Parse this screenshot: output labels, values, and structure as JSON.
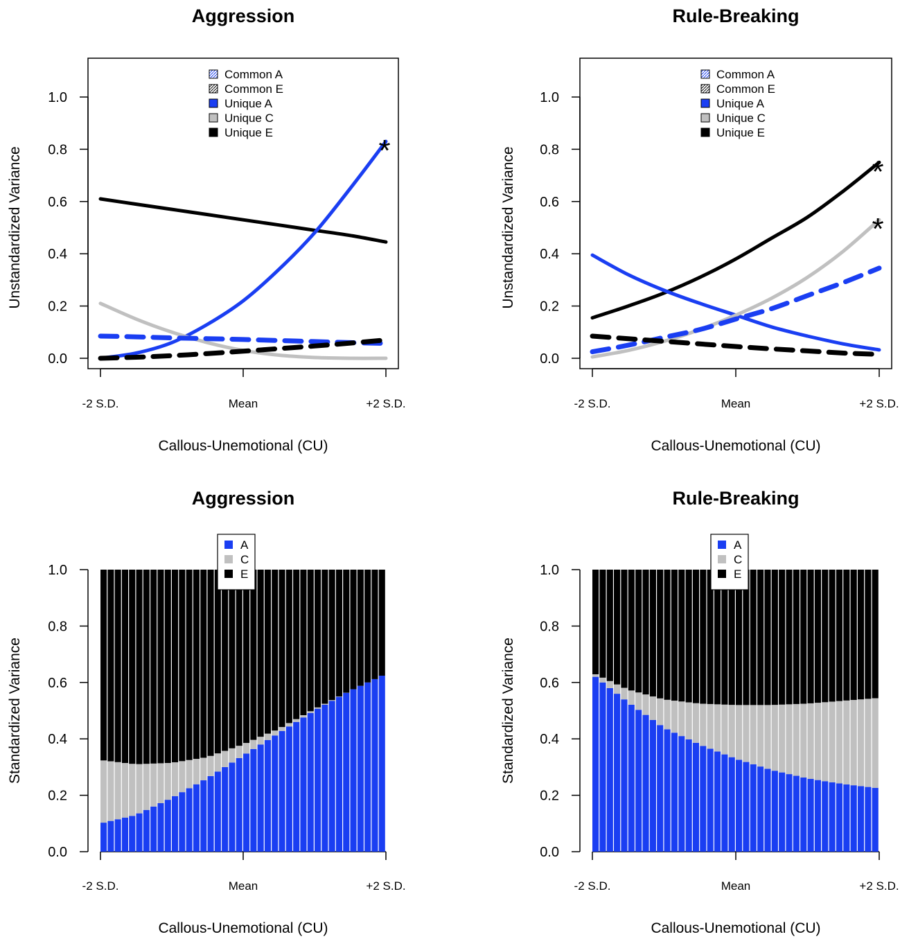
{
  "colors": {
    "blue": "#1a3ef2",
    "gray": "#c0c0c0",
    "black": "#000000",
    "white": "#ffffff"
  },
  "chart_data": [
    {
      "type": "line",
      "title": "Aggression",
      "xlabel": "Callous-Unemotional (CU)",
      "ylabel": "Unstandardized Variance",
      "x_tick_labels": [
        "-2 S.D.",
        "Mean",
        "+2 S.D."
      ],
      "x": [
        -2,
        -1.5,
        -1,
        -0.5,
        0,
        0.5,
        1,
        1.5,
        2
      ],
      "xlim": [
        -2,
        2
      ],
      "ylim": [
        0,
        1.1
      ],
      "y_ticks": [
        "0.0",
        "0.2",
        "0.4",
        "0.6",
        "0.8",
        "1.0"
      ],
      "grid": false,
      "legend_position": "top",
      "legend": [
        {
          "label": "Common A",
          "swatch": "hatch",
          "color": "#1a3ef2"
        },
        {
          "label": "Common E",
          "swatch": "hatch",
          "color": "#000000"
        },
        {
          "label": "Unique A",
          "swatch": "solid",
          "color": "#1a3ef2"
        },
        {
          "label": "Unique C",
          "swatch": "solid",
          "color": "#c0c0c0"
        },
        {
          "label": "Unique E",
          "swatch": "solid",
          "color": "#000000"
        }
      ],
      "series": [
        {
          "name": "Unique E",
          "color": "#000000",
          "style": "solid",
          "values": [
            0.61,
            0.59,
            0.57,
            0.55,
            0.53,
            0.51,
            0.49,
            0.47,
            0.445
          ]
        },
        {
          "name": "Unique A",
          "color": "#1a3ef2",
          "style": "solid",
          "values": [
            0.0,
            0.02,
            0.06,
            0.13,
            0.22,
            0.34,
            0.48,
            0.65,
            0.83
          ]
        },
        {
          "name": "Unique C",
          "color": "#c0c0c0",
          "style": "solid",
          "values": [
            0.21,
            0.15,
            0.1,
            0.06,
            0.03,
            0.012,
            0.003,
            0.0,
            0.0
          ]
        },
        {
          "name": "Common A",
          "color": "#1a3ef2",
          "style": "dashed",
          "values": [
            0.085,
            0.082,
            0.078,
            0.075,
            0.072,
            0.068,
            0.064,
            0.06,
            0.057
          ]
        },
        {
          "name": "Common E",
          "color": "#000000",
          "style": "dashed",
          "values": [
            0.0,
            0.004,
            0.01,
            0.018,
            0.027,
            0.037,
            0.047,
            0.058,
            0.07
          ]
        }
      ],
      "annotations": [
        {
          "text": "*",
          "x": 2,
          "y": 0.83
        }
      ]
    },
    {
      "type": "line",
      "title": "Rule-Breaking",
      "xlabel": "Callous-Unemotional (CU)",
      "ylabel": "Unstandardized Variance",
      "x_tick_labels": [
        "-2 S.D.",
        "Mean",
        "+2 S.D."
      ],
      "x": [
        -2,
        -1.5,
        -1,
        -0.5,
        0,
        0.5,
        1,
        1.5,
        2
      ],
      "xlim": [
        -2,
        2
      ],
      "ylim": [
        0,
        1.1
      ],
      "y_ticks": [
        "0.0",
        "0.2",
        "0.4",
        "0.6",
        "0.8",
        "1.0"
      ],
      "grid": false,
      "legend_position": "top",
      "legend": [
        {
          "label": "Common A",
          "swatch": "hatch",
          "color": "#1a3ef2"
        },
        {
          "label": "Common E",
          "swatch": "hatch",
          "color": "#000000"
        },
        {
          "label": "Unique A",
          "swatch": "solid",
          "color": "#1a3ef2"
        },
        {
          "label": "Unique C",
          "swatch": "solid",
          "color": "#c0c0c0"
        },
        {
          "label": "Unique E",
          "swatch": "solid",
          "color": "#000000"
        }
      ],
      "series": [
        {
          "name": "Unique E",
          "color": "#000000",
          "style": "solid",
          "values": [
            0.155,
            0.2,
            0.25,
            0.31,
            0.38,
            0.46,
            0.54,
            0.64,
            0.75
          ]
        },
        {
          "name": "Unique A",
          "color": "#1a3ef2",
          "style": "solid",
          "values": [
            0.395,
            0.32,
            0.26,
            0.21,
            0.165,
            0.12,
            0.085,
            0.055,
            0.032
          ]
        },
        {
          "name": "Unique C",
          "color": "#c0c0c0",
          "style": "solid",
          "values": [
            0.005,
            0.03,
            0.065,
            0.11,
            0.165,
            0.23,
            0.31,
            0.41,
            0.53
          ]
        },
        {
          "name": "Common A",
          "color": "#1a3ef2",
          "style": "dashed",
          "values": [
            0.025,
            0.05,
            0.08,
            0.11,
            0.15,
            0.19,
            0.24,
            0.29,
            0.345
          ]
        },
        {
          "name": "Common E",
          "color": "#000000",
          "style": "dashed",
          "values": [
            0.085,
            0.075,
            0.065,
            0.055,
            0.045,
            0.036,
            0.028,
            0.02,
            0.015
          ]
        }
      ],
      "annotations": [
        {
          "text": "*",
          "x": 2,
          "y": 0.75
        },
        {
          "text": "*",
          "x": 2,
          "y": 0.53
        }
      ]
    },
    {
      "type": "area",
      "stacked": true,
      "title": "Aggression",
      "xlabel": "Callous-Unemotional (CU)",
      "ylabel": "Standardized Variance",
      "x_tick_labels": [
        "-2 S.D.",
        "Mean",
        "+2 S.D."
      ],
      "x": [
        -2,
        -1.5,
        -1,
        -0.5,
        0,
        0.5,
        1,
        1.5,
        2
      ],
      "xlim": [
        -2,
        2
      ],
      "ylim": [
        0,
        1
      ],
      "y_ticks": [
        "0.0",
        "0.2",
        "0.4",
        "0.6",
        "0.8",
        "1.0"
      ],
      "grid": false,
      "legend_position": "top",
      "legend": [
        {
          "label": "A",
          "color": "#1a3ef2"
        },
        {
          "label": "C",
          "color": "#c0c0c0"
        },
        {
          "label": "E",
          "color": "#000000"
        }
      ],
      "series": [
        {
          "name": "A",
          "color": "#1a3ef2",
          "values": [
            0.1,
            0.13,
            0.19,
            0.26,
            0.34,
            0.42,
            0.5,
            0.57,
            0.63
          ]
        },
        {
          "name": "C",
          "color": "#c0c0c0",
          "values": [
            0.225,
            0.18,
            0.125,
            0.075,
            0.04,
            0.015,
            0.005,
            0.0,
            0.0
          ]
        },
        {
          "name": "E",
          "color": "#000000",
          "values": [
            0.675,
            0.69,
            0.685,
            0.665,
            0.62,
            0.565,
            0.495,
            0.43,
            0.37
          ]
        }
      ]
    },
    {
      "type": "area",
      "stacked": true,
      "title": "Rule-Breaking",
      "xlabel": "Callous-Unemotional (CU)",
      "ylabel": "Standardized Variance",
      "x_tick_labels": [
        "-2 S.D.",
        "Mean",
        "+2 S.D."
      ],
      "x": [
        -2,
        -1.5,
        -1,
        -0.5,
        0,
        0.5,
        1,
        1.5,
        2
      ],
      "xlim": [
        -2,
        2
      ],
      "ylim": [
        0,
        1
      ],
      "y_ticks": [
        "0.0",
        "0.2",
        "0.4",
        "0.6",
        "0.8",
        "1.0"
      ],
      "grid": false,
      "legend_position": "top",
      "legend": [
        {
          "label": "A",
          "color": "#1a3ef2"
        },
        {
          "label": "C",
          "color": "#c0c0c0"
        },
        {
          "label": "E",
          "color": "#000000"
        }
      ],
      "series": [
        {
          "name": "A",
          "color": "#1a3ef2",
          "values": [
            0.63,
            0.53,
            0.44,
            0.38,
            0.33,
            0.29,
            0.26,
            0.24,
            0.225
          ]
        },
        {
          "name": "C",
          "color": "#c0c0c0",
          "values": [
            0.005,
            0.045,
            0.1,
            0.145,
            0.19,
            0.23,
            0.265,
            0.295,
            0.32
          ]
        },
        {
          "name": "E",
          "color": "#000000",
          "values": [
            0.365,
            0.425,
            0.46,
            0.475,
            0.48,
            0.48,
            0.475,
            0.465,
            0.455
          ]
        }
      ]
    }
  ]
}
